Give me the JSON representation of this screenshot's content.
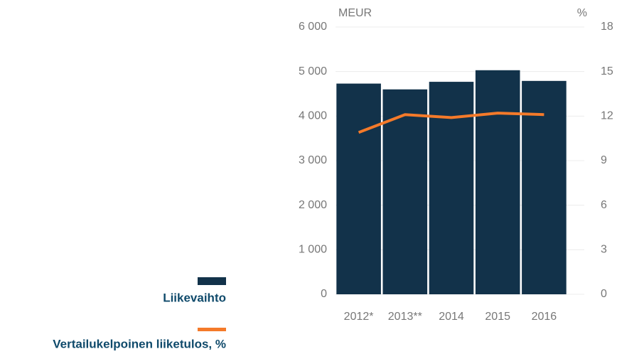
{
  "chart_data": {
    "type": "bar",
    "categories": [
      "2012*",
      "2013**",
      "2014",
      "2015",
      "2016"
    ],
    "series": [
      {
        "name": "Liikevaihto",
        "type": "bar",
        "color": "#12324a",
        "values": [
          4730,
          4600,
          4770,
          5030,
          4790
        ]
      },
      {
        "name": "Vertailukelpoinen liiketulos, %",
        "type": "line",
        "axis": "y2",
        "color": "#f47a2a",
        "values": [
          10.9,
          12.1,
          11.9,
          12.2,
          12.1
        ]
      }
    ],
    "ylabel": "MEUR",
    "y2label": "%",
    "ylim": [
      0,
      6000
    ],
    "yticks": [
      0,
      {
        "value": 1000,
        "label": "1 000"
      },
      {
        "value": 2000,
        "label": "2 000"
      },
      {
        "value": 3000,
        "label": "3 000"
      },
      {
        "value": 4000,
        "label": "4 000"
      },
      {
        "value": 5000,
        "label": "5 000"
      },
      {
        "value": 6000,
        "label": "6 000"
      }
    ],
    "y2lim": [
      0,
      18
    ],
    "y2ticks": [
      0,
      3,
      6,
      9,
      12,
      15,
      18
    ],
    "grid": true
  }
}
